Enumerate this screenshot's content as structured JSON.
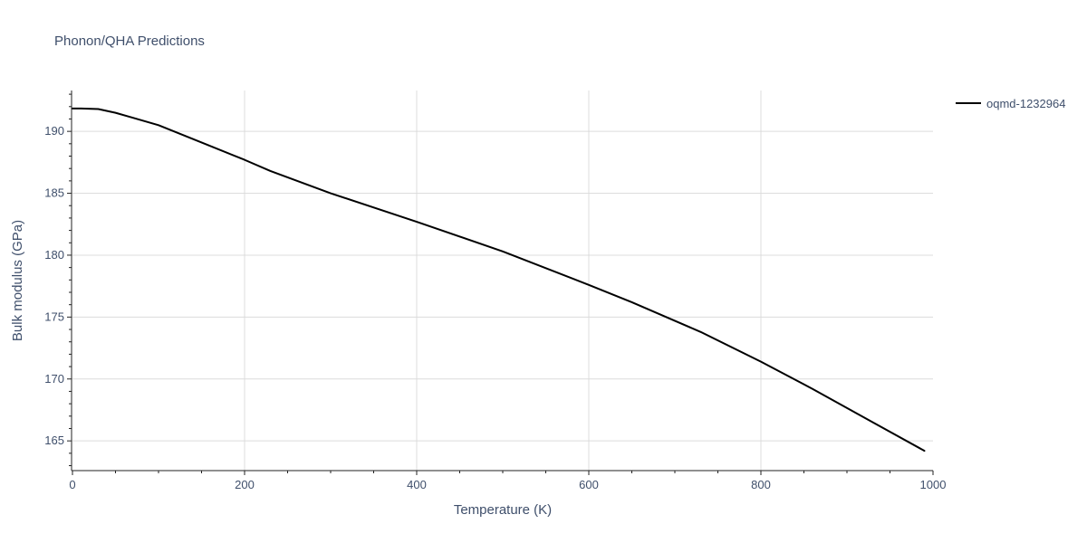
{
  "chart_data": {
    "type": "line",
    "title": "Phonon/QHA Predictions",
    "xlabel": "Temperature (K)",
    "ylabel": "Bulk modulus (GPa)",
    "xlim": [
      0,
      1000
    ],
    "ylim": [
      162.6,
      193.3
    ],
    "x_ticks": [
      0,
      200,
      400,
      600,
      800,
      1000
    ],
    "y_ticks": [
      165,
      170,
      175,
      180,
      185,
      190
    ],
    "grid": true,
    "legend_position": "top-right",
    "series": [
      {
        "name": "oqmd-1232964",
        "color": "#000000",
        "x": [
          0,
          10,
          30,
          50,
          70,
          100,
          150,
          200,
          230,
          300,
          400,
          500,
          600,
          650,
          730,
          800,
          860,
          930,
          990
        ],
        "y": [
          191.85,
          191.85,
          191.8,
          191.5,
          191.1,
          190.5,
          189.1,
          187.7,
          186.8,
          185.0,
          182.7,
          180.3,
          177.6,
          176.2,
          173.8,
          171.4,
          169.2,
          166.5,
          164.2
        ]
      }
    ]
  }
}
